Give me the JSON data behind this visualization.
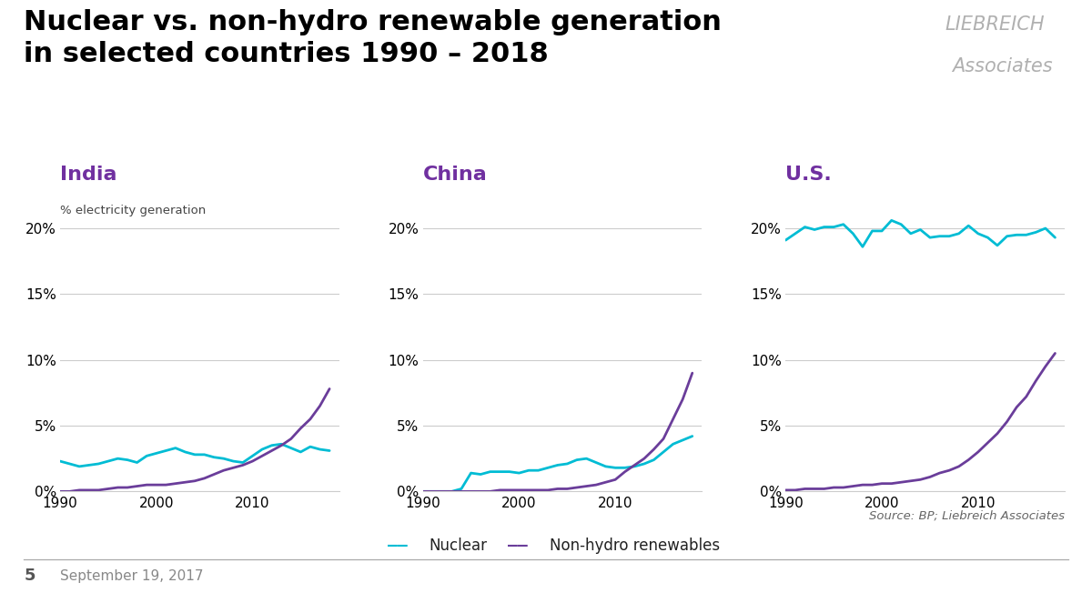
{
  "title_line1": "Nuclear vs. non-hydro renewable generation",
  "title_line2": "in selected countries 1990 – 2018",
  "title_color": "#000000",
  "title_fontsize": 22,
  "watermark_line1": "LIEBREICH",
  "watermark_line2": "Associates",
  "watermark_color": "#b0b0b0",
  "nuclear_color": "#00bcd4",
  "renewables_color": "#6a3d9a",
  "background_color": "#ffffff",
  "grid_color": "#cccccc",
  "countries": [
    "India",
    "China",
    "U.S."
  ],
  "country_color": "#7030a0",
  "ylabel_text": "% electricity generation",
  "years": [
    1990,
    1991,
    1992,
    1993,
    1994,
    1995,
    1996,
    1997,
    1998,
    1999,
    2000,
    2001,
    2002,
    2003,
    2004,
    2005,
    2006,
    2007,
    2008,
    2009,
    2010,
    2011,
    2012,
    2013,
    2014,
    2015,
    2016,
    2017,
    2018
  ],
  "india_nuclear": [
    2.3,
    2.1,
    1.9,
    2.0,
    2.1,
    2.3,
    2.5,
    2.4,
    2.2,
    2.7,
    2.9,
    3.1,
    3.3,
    3.0,
    2.8,
    2.8,
    2.6,
    2.5,
    2.3,
    2.2,
    2.7,
    3.2,
    3.5,
    3.6,
    3.3,
    3.0,
    3.4,
    3.2,
    3.1
  ],
  "india_renewables": [
    0.0,
    0.0,
    0.1,
    0.1,
    0.1,
    0.2,
    0.3,
    0.3,
    0.4,
    0.5,
    0.5,
    0.5,
    0.6,
    0.7,
    0.8,
    1.0,
    1.3,
    1.6,
    1.8,
    2.0,
    2.3,
    2.7,
    3.1,
    3.5,
    4.0,
    4.8,
    5.5,
    6.5,
    7.8
  ],
  "china_nuclear": [
    0.0,
    0.0,
    0.0,
    0.0,
    0.2,
    1.4,
    1.3,
    1.5,
    1.5,
    1.5,
    1.4,
    1.6,
    1.6,
    1.8,
    2.0,
    2.1,
    2.4,
    2.5,
    2.2,
    1.9,
    1.8,
    1.8,
    1.9,
    2.1,
    2.4,
    3.0,
    3.6,
    3.9,
    4.2
  ],
  "china_renewables": [
    0.0,
    0.0,
    0.0,
    0.0,
    0.0,
    0.0,
    0.0,
    0.0,
    0.1,
    0.1,
    0.1,
    0.1,
    0.1,
    0.1,
    0.2,
    0.2,
    0.3,
    0.4,
    0.5,
    0.7,
    0.9,
    1.5,
    2.0,
    2.5,
    3.2,
    4.0,
    5.5,
    7.0,
    9.0
  ],
  "us_nuclear": [
    19.1,
    19.6,
    20.1,
    19.9,
    20.1,
    20.1,
    20.3,
    19.6,
    18.6,
    19.8,
    19.8,
    20.6,
    20.3,
    19.6,
    19.9,
    19.3,
    19.4,
    19.4,
    19.6,
    20.2,
    19.6,
    19.3,
    18.7,
    19.4,
    19.5,
    19.5,
    19.7,
    20.0,
    19.3
  ],
  "us_renewables": [
    0.1,
    0.1,
    0.2,
    0.2,
    0.2,
    0.3,
    0.3,
    0.4,
    0.5,
    0.5,
    0.6,
    0.6,
    0.7,
    0.8,
    0.9,
    1.1,
    1.4,
    1.6,
    1.9,
    2.4,
    3.0,
    3.7,
    4.4,
    5.3,
    6.4,
    7.2,
    8.4,
    9.5,
    10.5
  ],
  "source_text": "Source: BP; Liebreich Associates",
  "footer_number": "5",
  "footer_date": "September 19, 2017",
  "yticks": [
    0,
    5,
    10,
    15,
    20
  ],
  "ylim": [
    0,
    22
  ],
  "xticks": [
    1990,
    2000,
    2010
  ],
  "xlim": [
    1990,
    2019
  ],
  "legend_nuclear": "Nuclear",
  "legend_renewables": "Non-hydro renewables"
}
